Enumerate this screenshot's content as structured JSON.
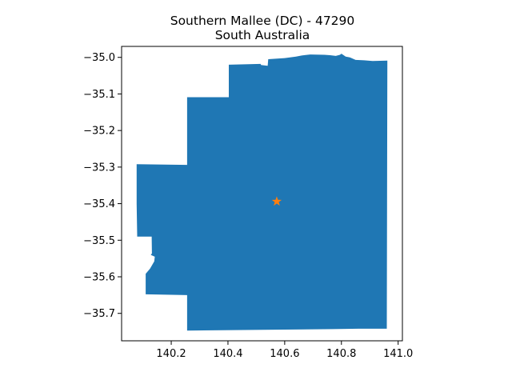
{
  "chart_data": {
    "type": "map",
    "title": "Southern Mallee (DC) - 47290",
    "subtitle": "South Australia",
    "xlim": [
      140.025,
      141.015
    ],
    "ylim": [
      -35.775,
      -34.97
    ],
    "x_ticks": [
      {
        "value": 140.2,
        "label": "140.2"
      },
      {
        "value": 140.4,
        "label": "140.4"
      },
      {
        "value": 140.6,
        "label": "140.6"
      },
      {
        "value": 140.8,
        "label": "140.8"
      },
      {
        "value": 141.0,
        "label": "141.0"
      }
    ],
    "y_ticks": [
      {
        "value": -35.0,
        "label": "−35.0"
      },
      {
        "value": -35.1,
        "label": "−35.1"
      },
      {
        "value": -35.2,
        "label": "−35.2"
      },
      {
        "value": -35.3,
        "label": "−35.3"
      },
      {
        "value": -35.4,
        "label": "−35.4"
      },
      {
        "value": -35.5,
        "label": "−35.5"
      },
      {
        "value": -35.6,
        "label": "−35.6"
      },
      {
        "value": -35.7,
        "label": "−35.7"
      }
    ],
    "region_color": "#1f77b4",
    "marker_color": "#ff7f0e",
    "marker_shape": "star",
    "centroid": {
      "lon": 140.572,
      "lat": -35.394
    },
    "boundary": [
      [
        140.078,
        -35.292
      ],
      [
        140.256,
        -35.294
      ],
      [
        140.256,
        -35.109
      ],
      [
        140.403,
        -35.109
      ],
      [
        140.403,
        -35.02
      ],
      [
        140.515,
        -35.018
      ],
      [
        140.517,
        -35.021
      ],
      [
        140.54,
        -35.023
      ],
      [
        140.542,
        -35.005
      ],
      [
        140.6,
        -35.002
      ],
      [
        140.64,
        -34.998
      ],
      [
        140.66,
        -34.995
      ],
      [
        140.69,
        -34.992
      ],
      [
        140.74,
        -34.993
      ],
      [
        140.76,
        -34.994
      ],
      [
        140.78,
        -34.996
      ],
      [
        140.795,
        -34.993
      ],
      [
        140.8,
        -34.99
      ],
      [
        140.815,
        -34.998
      ],
      [
        140.83,
        -35.0
      ],
      [
        140.85,
        -35.007
      ],
      [
        140.88,
        -35.008
      ],
      [
        140.91,
        -35.01
      ],
      [
        140.962,
        -35.009
      ],
      [
        140.96,
        -35.742
      ],
      [
        140.86,
        -35.742
      ],
      [
        140.77,
        -35.743
      ],
      [
        140.256,
        -35.747
      ],
      [
        140.256,
        -35.65
      ],
      [
        140.11,
        -35.648
      ],
      [
        140.11,
        -35.592
      ],
      [
        140.125,
        -35.578
      ],
      [
        140.14,
        -35.558
      ],
      [
        140.142,
        -35.545
      ],
      [
        140.128,
        -35.54
      ],
      [
        140.132,
        -35.536
      ],
      [
        140.131,
        -35.49
      ],
      [
        140.08,
        -35.49
      ],
      [
        140.078,
        -35.4
      ],
      [
        140.078,
        -35.292
      ]
    ]
  }
}
